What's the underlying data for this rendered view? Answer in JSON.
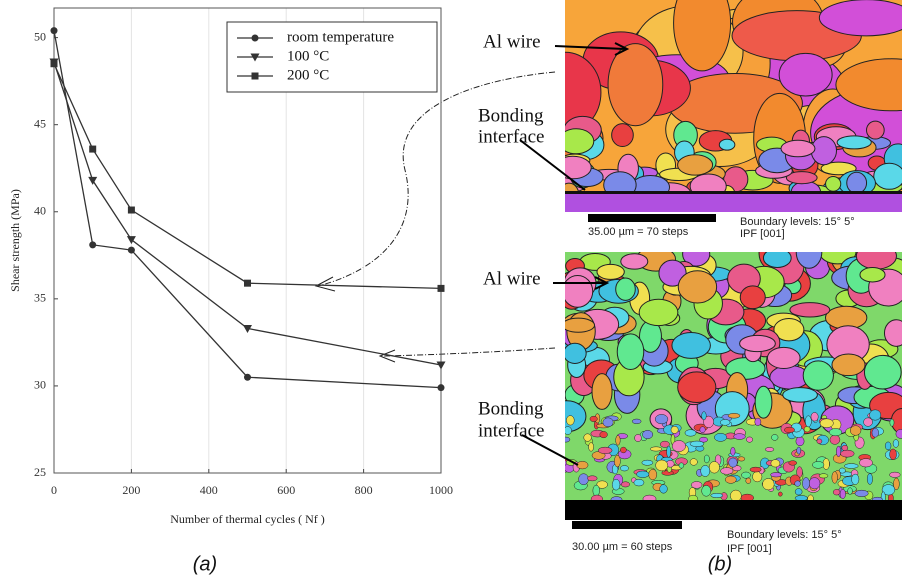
{
  "chart_data": {
    "type": "line",
    "x_label": "Number of thermal cycles ( Nf )",
    "y_label": "Shear strength (MPa)",
    "x": [
      0,
      100,
      200,
      500,
      1000
    ],
    "series": [
      {
        "name": "room temperature",
        "color": "#333333",
        "marker": "circle",
        "values": [
          50.4,
          38.1,
          37.8,
          30.5,
          29.9
        ]
      },
      {
        "name": "100 °C",
        "color": "#333333",
        "marker": "triangle-down",
        "values": [
          48.6,
          41.8,
          38.4,
          33.3,
          31.2
        ]
      },
      {
        "name": "200 °C",
        "color": "#333333",
        "marker": "square",
        "values": [
          48.5,
          43.6,
          40.1,
          35.9,
          35.6
        ]
      }
    ],
    "xlim": [
      0,
      1000
    ],
    "xticks": [
      0,
      200,
      400,
      600,
      800,
      1000
    ],
    "ylim": [
      25,
      51.7
    ],
    "yticks": [
      25,
      30,
      35,
      40,
      45,
      50
    ],
    "grid": "x",
    "legend": "top-right"
  },
  "images": [
    {
      "label_top": "Al wire",
      "label_bottom": [
        "Bonding",
        "interface"
      ],
      "scale": "35.00 µm = 70 steps",
      "boundary": "Boundary levels: 15° 5°",
      "ipf": "IPF [001]"
    },
    {
      "label_top": "Al wire",
      "label_bottom": [
        "Bonding",
        "interface"
      ],
      "scale": "30.00 µm = 60 steps",
      "boundary": "Boundary levels: 15° 5°",
      "ipf": "IPF [001]"
    }
  ],
  "panels": [
    "(a)",
    "(b)"
  ]
}
